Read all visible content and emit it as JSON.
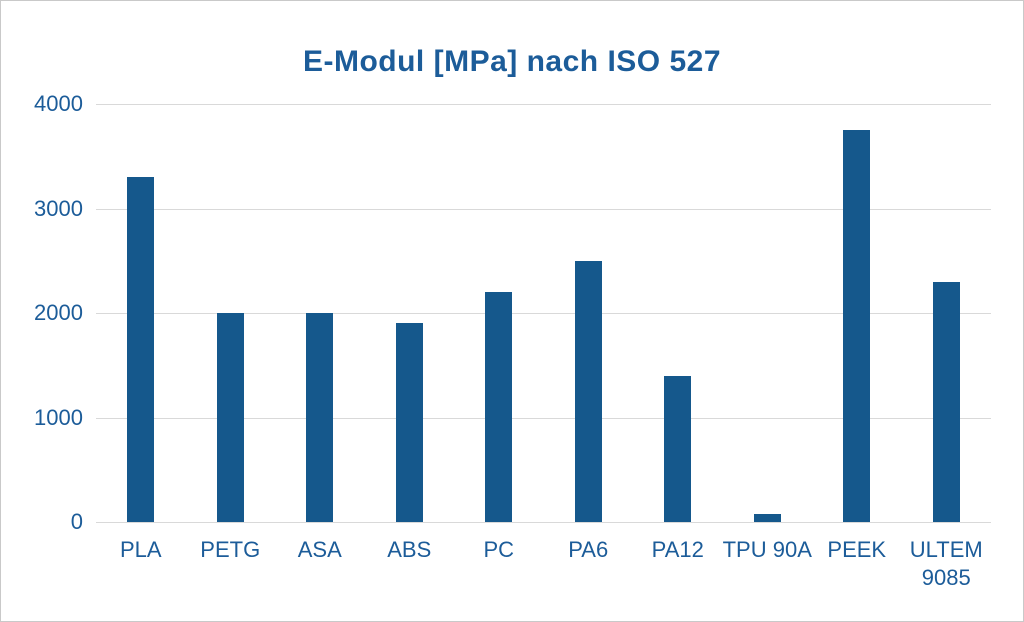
{
  "chart_data": {
    "type": "bar",
    "title": "E-Modul [MPa] nach ISO 527",
    "categories": [
      "PLA",
      "PETG",
      "ASA",
      "ABS",
      "PC",
      "PA6",
      "PA12",
      "TPU 90A",
      "PEEK",
      "ULTEM 9085"
    ],
    "values": [
      3300,
      2000,
      2000,
      1900,
      2200,
      2500,
      1400,
      80,
      3750,
      2300
    ],
    "xlabel": "",
    "ylabel": "",
    "ylim": [
      0,
      4000
    ],
    "y_ticks": [
      0,
      1000,
      2000,
      3000,
      4000
    ],
    "grid": "horizontal",
    "legend": "none",
    "colors": {
      "bar": "#15588c",
      "text": "#1c5c99",
      "gridline": "#d9d9d9",
      "background": "#ffffff"
    }
  }
}
